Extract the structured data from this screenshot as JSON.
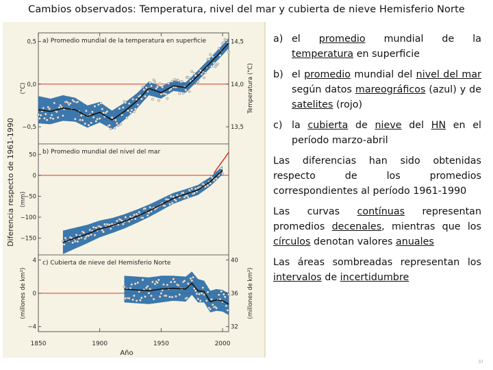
{
  "slide": {
    "title": "Cambios observados: Temperatura, nivel del mar y cubierta de nieve Hemisferio Norte",
    "page_number": "37"
  },
  "items": {
    "a_label": "a)",
    "a_part1": "el ",
    "a_u1": "promedio",
    "a_part2": " mundial de la ",
    "a_u2": "temperatura",
    "a_part3": " en superficie",
    "b_label": "b)",
    "b_part1": "el ",
    "b_u1": "promedio",
    "b_part2": " mundial del ",
    "b_u2": "nivel del mar",
    "b_part3": " según datos ",
    "b_u3": "mareográficos",
    "b_part4": " (azul) y de ",
    "b_u4": "satelites",
    "b_part5": " (rojo)",
    "c_label": "c)",
    "c_part1": "la ",
    "c_u1": "cubierta",
    "c_part2": " de ",
    "c_u2": "nieve",
    "c_part3": " del ",
    "c_u3": "HN",
    "c_part4": " en el período marzo-abril"
  },
  "paragraphs": {
    "p1": "Las diferencias han sido obtenidas respecto de los promedios correspondientes al período 1961-1990",
    "p2_part1": "Las curvas ",
    "p2_u1": "contínuas",
    "p2_part2": " representan promedios ",
    "p2_u2": "decenales",
    "p2_part3": ", mientras que los ",
    "p2_u3": "círculos",
    "p2_part4": " denotan valores ",
    "p2_u4": "anuales",
    "p3_part1": "Las áreas sombreadas representan los ",
    "p3_u1": "intervalos",
    "p3_part2": " de ",
    "p3_u2": "incertidumbre"
  },
  "colors": {
    "band": "#2a6ea8",
    "curve": "#111111",
    "circle_fill": "#e6e6e6",
    "reference_line": "#d23a2a",
    "satellite": "#d23a2a",
    "panel_bg": "#f7f3e4"
  },
  "chart_data": {
    "type": "line",
    "shared_ylabel": "Diferencia respecto de 1961-1990",
    "xlabel": "Año",
    "xlim": [
      1850,
      2005
    ],
    "xticks": [
      "1850",
      "1900",
      "1950",
      "2000"
    ],
    "panels": [
      {
        "id": "temperature",
        "title": "a) Promedio mundial de la temperatura en superficie",
        "left_unit": "(°C)",
        "right_unit": "Temperatura (°C)",
        "ylim": [
          -0.7,
          0.6
        ],
        "yticks_left": [
          "0,5",
          "0,0",
          "−0,5"
        ],
        "yticks_left_values": [
          0.5,
          0.0,
          -0.5
        ],
        "yticks_right": [
          "14,5",
          "14,0",
          "13,5"
        ],
        "yticks_right_values": [
          0.5,
          0.0,
          -0.5
        ],
        "x": [
          1850,
          1860,
          1870,
          1880,
          1890,
          1900,
          1910,
          1920,
          1930,
          1940,
          1950,
          1960,
          1970,
          1980,
          1990,
          2000,
          2005
        ],
        "curve": [
          -0.3,
          -0.32,
          -0.28,
          -0.3,
          -0.38,
          -0.33,
          -0.42,
          -0.32,
          -0.2,
          -0.05,
          -0.1,
          -0.02,
          -0.04,
          0.1,
          0.25,
          0.4,
          0.48
        ],
        "band_halfwidth": [
          0.16,
          0.15,
          0.15,
          0.14,
          0.13,
          0.12,
          0.11,
          0.1,
          0.09,
          0.08,
          0.07,
          0.06,
          0.06,
          0.06,
          0.06,
          0.06,
          0.06
        ],
        "annual_spread": 0.12
      },
      {
        "id": "sea-level",
        "title": "b) Promedio mundial del nivel del mar",
        "left_unit": "(mm)",
        "right_unit": "",
        "ylim": [
          -190,
          75
        ],
        "yticks_left": [
          "50",
          "0",
          "−50",
          "−100",
          "−150"
        ],
        "yticks_left_values": [
          50,
          0,
          -50,
          -100,
          -150
        ],
        "yticks_right": [],
        "yticks_right_values": [],
        "x": [
          1870,
          1880,
          1890,
          1900,
          1910,
          1920,
          1930,
          1940,
          1950,
          1960,
          1970,
          1980,
          1990,
          2000
        ],
        "curve": [
          -160,
          -150,
          -140,
          -128,
          -120,
          -110,
          -98,
          -85,
          -70,
          -55,
          -45,
          -35,
          -15,
          12
        ],
        "band_halfwidth": [
          28,
          25,
          22,
          20,
          18,
          17,
          16,
          15,
          14,
          13,
          12,
          12,
          11,
          10
        ],
        "annual_spread": 10,
        "satellite": {
          "x": [
            1993,
            1996,
            1999,
            2002,
            2005
          ],
          "y": [
            5,
            18,
            30,
            42,
            55
          ]
        }
      },
      {
        "id": "snow-cover",
        "title": "c) Cubierta de nieve del Hemisferio Norte",
        "left_unit": "(millones de km²)",
        "right_unit": "(millones de km²)",
        "ylim": [
          -4.6,
          4.6
        ],
        "yticks_left": [
          "4",
          "0",
          "−4"
        ],
        "yticks_left_values": [
          4,
          0,
          -4
        ],
        "yticks_right": [
          "40",
          "36",
          "32"
        ],
        "yticks_right_values": [
          4,
          0,
          -4
        ],
        "x": [
          1920,
          1930,
          1940,
          1950,
          1960,
          1970,
          1975,
          1980,
          1985,
          1990,
          1995,
          2000,
          2005
        ],
        "curve": [
          0.5,
          0.4,
          0.3,
          0.5,
          0.6,
          0.5,
          1.2,
          0.3,
          0.2,
          -1.0,
          -0.8,
          -0.9,
          -1.3
        ],
        "band_halfwidth": [
          1.6,
          1.6,
          1.6,
          1.6,
          1.5,
          1.5,
          1.4,
          1.4,
          1.3,
          1.3,
          1.3,
          1.3,
          1.3
        ],
        "annual_spread": 1.3
      }
    ]
  }
}
